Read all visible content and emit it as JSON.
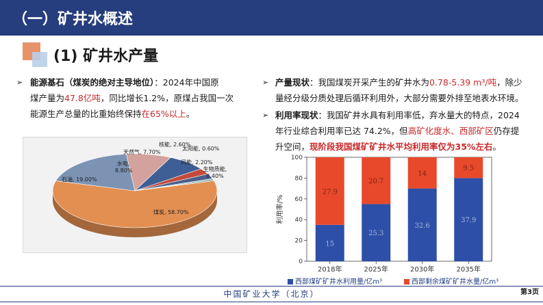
{
  "header": {
    "title": "（一）矿井水概述"
  },
  "subtitle": "(1) 矿井水产量",
  "left_text": {
    "bullet": "➢",
    "label": "能源基石（煤炭的绝对主导地位）",
    "line1_rest": "：2024年中国原",
    "line2_pre": "煤产量为",
    "line2_hl": "47.8亿吨",
    "line2_post": "，同比增长1.2%，原煤占我国一次",
    "line3_pre": "能源生产总量的比重始终保持",
    "line3_hl": "在65%以上",
    "line3_post": "。"
  },
  "right_text": {
    "p1": {
      "bullet": "➢",
      "label": "产量现状",
      "line1_pre": "：我国煤炭开采产生的矿井水为",
      "line1_hl": "0.78-5.39 m³/吨",
      "line1_post": "，除少",
      "line2": "量经分级分质处理后循环利用外，大部分需要外排至地表水环境。"
    },
    "p2": {
      "bullet": "➢",
      "label": "利用率现状",
      "line1_rest": "：我国矿井水具有利用率低，弃水量大的特点，2024",
      "line2_pre": "年行业综合利用率已达 74.2%，但",
      "line2_hl": "高矿化度水、西部矿区",
      "line2_post": "仍存提",
      "line3_pre": "升空间，",
      "line3_hl": "现阶段我国煤矿矿井水平均利用率仅为35%左右",
      "line3_post": "。"
    }
  },
  "chart_data": [
    {
      "type": "pie",
      "slices": [
        {
          "label": "煤炭, 58.70%",
          "value": 58.7,
          "color": "#e38f52"
        },
        {
          "label": "石油, 19.00%",
          "value": 19.0,
          "color": "#7c93b4"
        },
        {
          "label": "水电, 8.80%",
          "value": 8.8,
          "color": "#d4a29c"
        },
        {
          "label": "天然气, 7.70%",
          "value": 7.7,
          "color": "#3e5f95"
        },
        {
          "label": "核能, 2.60%",
          "value": 2.6,
          "color": "#c44a3b"
        },
        {
          "label": "风能, 2.20%",
          "value": 2.2,
          "color": "#4b5e8b"
        },
        {
          "label": "太阳能, 0.60%",
          "value": 0.6,
          "color": "#8fa6c6"
        },
        {
          "label": "生物质能, 0.40%",
          "value": 0.4,
          "color": "#6a8a5a"
        }
      ]
    },
    {
      "type": "bar",
      "stacked": true,
      "categories": [
        "2018年",
        "2025年",
        "2030年",
        "2035年"
      ],
      "ylabel": "利用率/%",
      "ylim": [
        0,
        100
      ],
      "yticks": [
        0,
        20,
        40,
        60,
        80,
        100
      ],
      "series": [
        {
          "name": "西部煤矿矿井水利用量/亿m³",
          "values": [
            15,
            25.3,
            32.6,
            37.9
          ],
          "percent": [
            35,
            55,
            70,
            80
          ],
          "color": "#2d4fa8",
          "label_color": "#a9b8dc"
        },
        {
          "name": "西部剩余煤矿矿井水量/亿m³",
          "values": [
            27.9,
            20.7,
            14,
            9.5
          ],
          "percent": [
            65,
            45,
            30,
            20
          ],
          "color": "#e8492b",
          "label_color": "#7a2412"
        }
      ]
    }
  ],
  "footer": {
    "text": "中国矿业大学（北京）",
    "page": "第3页"
  }
}
